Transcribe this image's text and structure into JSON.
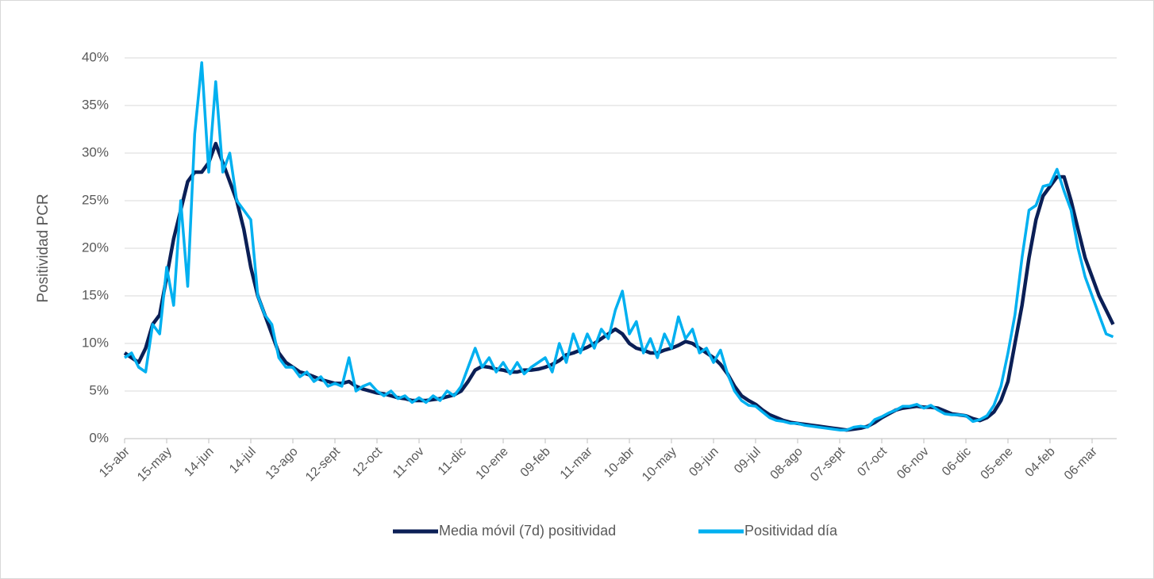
{
  "chart_data": {
    "type": "line",
    "y_label": "Positividad PCR",
    "categories": [
      "15-abr",
      null,
      null,
      null,
      null,
      null,
      "15-may",
      null,
      null,
      null,
      null,
      null,
      "14-jun",
      null,
      null,
      null,
      null,
      null,
      "14-jul",
      null,
      null,
      null,
      null,
      null,
      "13-ago",
      null,
      null,
      null,
      null,
      null,
      "12-sept",
      null,
      null,
      null,
      null,
      null,
      "12-oct",
      null,
      null,
      null,
      null,
      null,
      "11-nov",
      null,
      null,
      null,
      null,
      null,
      "11-dic",
      null,
      null,
      null,
      null,
      null,
      "10-ene",
      null,
      null,
      null,
      null,
      null,
      "09-feb",
      null,
      null,
      null,
      null,
      null,
      "11-mar",
      null,
      null,
      null,
      null,
      null,
      "10-abr",
      null,
      null,
      null,
      null,
      null,
      "10-may",
      null,
      null,
      null,
      null,
      null,
      "09-jun",
      null,
      null,
      null,
      null,
      null,
      "09-jul",
      null,
      null,
      null,
      null,
      null,
      "08-ago",
      null,
      null,
      null,
      null,
      null,
      "07-sept",
      null,
      null,
      null,
      null,
      null,
      "07-oct",
      null,
      null,
      null,
      null,
      null,
      "06-nov",
      null,
      null,
      null,
      null,
      null,
      "06-dic",
      null,
      null,
      null,
      null,
      null,
      "05-ene",
      null,
      null,
      null,
      null,
      null,
      "04-feb",
      null,
      null,
      null,
      null,
      null,
      "06-mar",
      null,
      null,
      null
    ],
    "series": [
      {
        "name": "Media móvil (7d) positividad",
        "color": "#0b1f56",
        "values": [
          9,
          8.5,
          8,
          9.5,
          12,
          13,
          17,
          21,
          24,
          27,
          28,
          28,
          29,
          31,
          29,
          27,
          25,
          22,
          18,
          15,
          13,
          11,
          9,
          8,
          7.5,
          7,
          6.8,
          6.5,
          6.2,
          6,
          5.8,
          5.8,
          6,
          5.5,
          5.2,
          5,
          4.8,
          4.7,
          4.5,
          4.3,
          4.2,
          4,
          4,
          4,
          4.1,
          4.2,
          4.4,
          4.6,
          5,
          6,
          7.2,
          7.6,
          7.5,
          7.3,
          7.2,
          7,
          7,
          7.2,
          7.2,
          7.3,
          7.5,
          7.8,
          8.2,
          8.8,
          9,
          9.3,
          9.6,
          10,
          10.5,
          11,
          11.5,
          11,
          10,
          9.5,
          9.3,
          9,
          9,
          9.3,
          9.5,
          9.8,
          10.2,
          10,
          9.5,
          9,
          8.5,
          7.8,
          6.8,
          5.5,
          4.5,
          4,
          3.6,
          3,
          2.5,
          2.2,
          1.9,
          1.7,
          1.6,
          1.5,
          1.4,
          1.3,
          1.2,
          1.1,
          1,
          0.9,
          1,
          1.1,
          1.3,
          1.7,
          2.2,
          2.6,
          3,
          3.2,
          3.3,
          3.4,
          3.3,
          3.3,
          3.2,
          2.9,
          2.6,
          2.5,
          2.4,
          2.1,
          1.9,
          2.2,
          2.8,
          4,
          6,
          10,
          14,
          19,
          23,
          25.5,
          26.5,
          27.5,
          27.5,
          25,
          22,
          19,
          17,
          15,
          13.5,
          12
        ]
      },
      {
        "name": "Positividad día",
        "color": "#00b0f0",
        "values": [
          8.5,
          9,
          7.5,
          7,
          12,
          11,
          18,
          14,
          25,
          16,
          32,
          39.5,
          28,
          37.5,
          28,
          30,
          25,
          24,
          23,
          15,
          13,
          12,
          8.5,
          7.5,
          7.5,
          6.5,
          7,
          6,
          6.5,
          5.5,
          5.8,
          5.5,
          8.5,
          5,
          5.5,
          5.8,
          5,
          4.5,
          5,
          4.2,
          4.5,
          3.8,
          4.3,
          3.8,
          4.5,
          4,
          5,
          4.5,
          5.5,
          7.5,
          9.5,
          7.5,
          8.5,
          7,
          8,
          6.8,
          8,
          6.8,
          7.5,
          8,
          8.5,
          7,
          10,
          8,
          11,
          9,
          11,
          9.5,
          11.5,
          10.5,
          13.5,
          15.5,
          11,
          12.3,
          9,
          10.5,
          8.5,
          11,
          9.5,
          12.8,
          10.5,
          11.5,
          9,
          9.5,
          8,
          9.3,
          6.8,
          5,
          4,
          3.5,
          3.4,
          2.8,
          2.2,
          1.9,
          1.8,
          1.6,
          1.6,
          1.4,
          1.3,
          1.2,
          1.1,
          1,
          0.9,
          0.9,
          1.2,
          1.3,
          1.2,
          2,
          2.3,
          2.7,
          3,
          3.4,
          3.4,
          3.6,
          3.2,
          3.5,
          3,
          2.6,
          2.5,
          2.5,
          2.4,
          1.8,
          2,
          2.4,
          3.5,
          5.5,
          9,
          13,
          19,
          24,
          24.5,
          26.5,
          26.7,
          28.3,
          26,
          24,
          20,
          17,
          15,
          13,
          11,
          10.7
        ]
      }
    ],
    "ylim": [
      0,
      40
    ],
    "yticks": [
      {
        "value": 0,
        "label": "0%"
      },
      {
        "value": 5,
        "label": "5%"
      },
      {
        "value": 10,
        "label": "10%"
      },
      {
        "value": 15,
        "label": "15%"
      },
      {
        "value": 20,
        "label": "20%"
      },
      {
        "value": 25,
        "label": "25%"
      },
      {
        "value": 30,
        "label": "30%"
      },
      {
        "value": 35,
        "label": "35%"
      },
      {
        "value": 40,
        "label": "40%"
      }
    ],
    "grid": true,
    "legend": "bottom"
  }
}
